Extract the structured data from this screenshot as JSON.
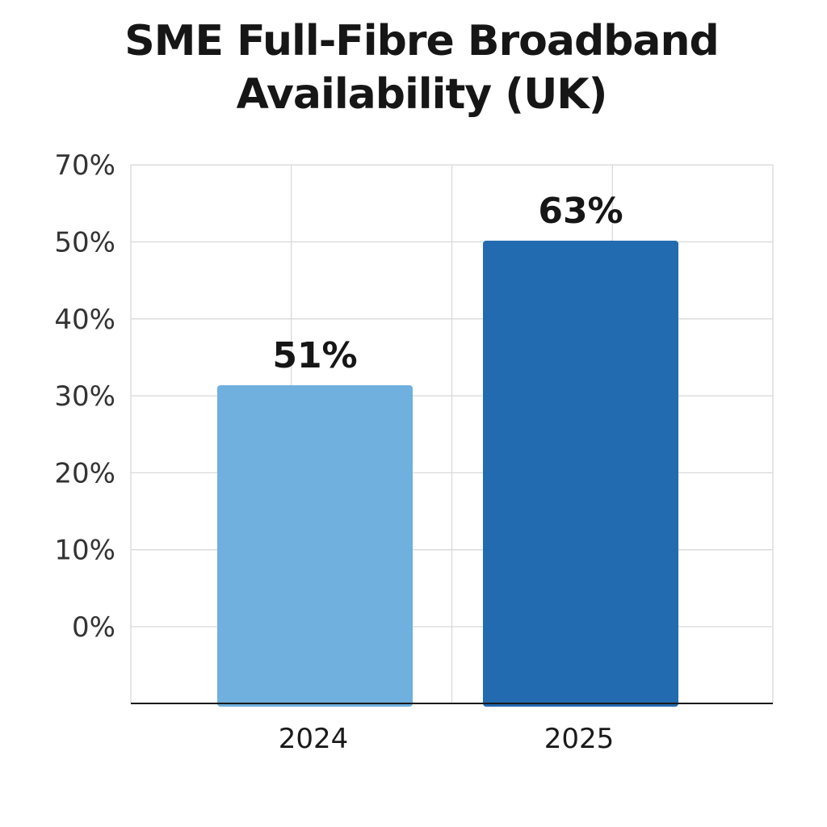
{
  "chart_data": {
    "type": "bar",
    "title": "SME Full-Fibre Broadband\nAvailability (UK)",
    "xlabel": "",
    "ylabel": "",
    "categories": [
      "2024",
      "2025"
    ],
    "values": [
      51,
      63
    ],
    "data_labels": [
      "51%",
      "63%"
    ],
    "y_tick_labels": [
      "0%",
      "10%",
      "20%",
      "30%",
      "40%",
      "50%",
      "70%"
    ],
    "grid": true,
    "legend": "none",
    "colors": [
      "#6fb0de",
      "#236bb0"
    ],
    "grid_color": "#d9d9d9",
    "axis_color": "#1a1a1a"
  }
}
